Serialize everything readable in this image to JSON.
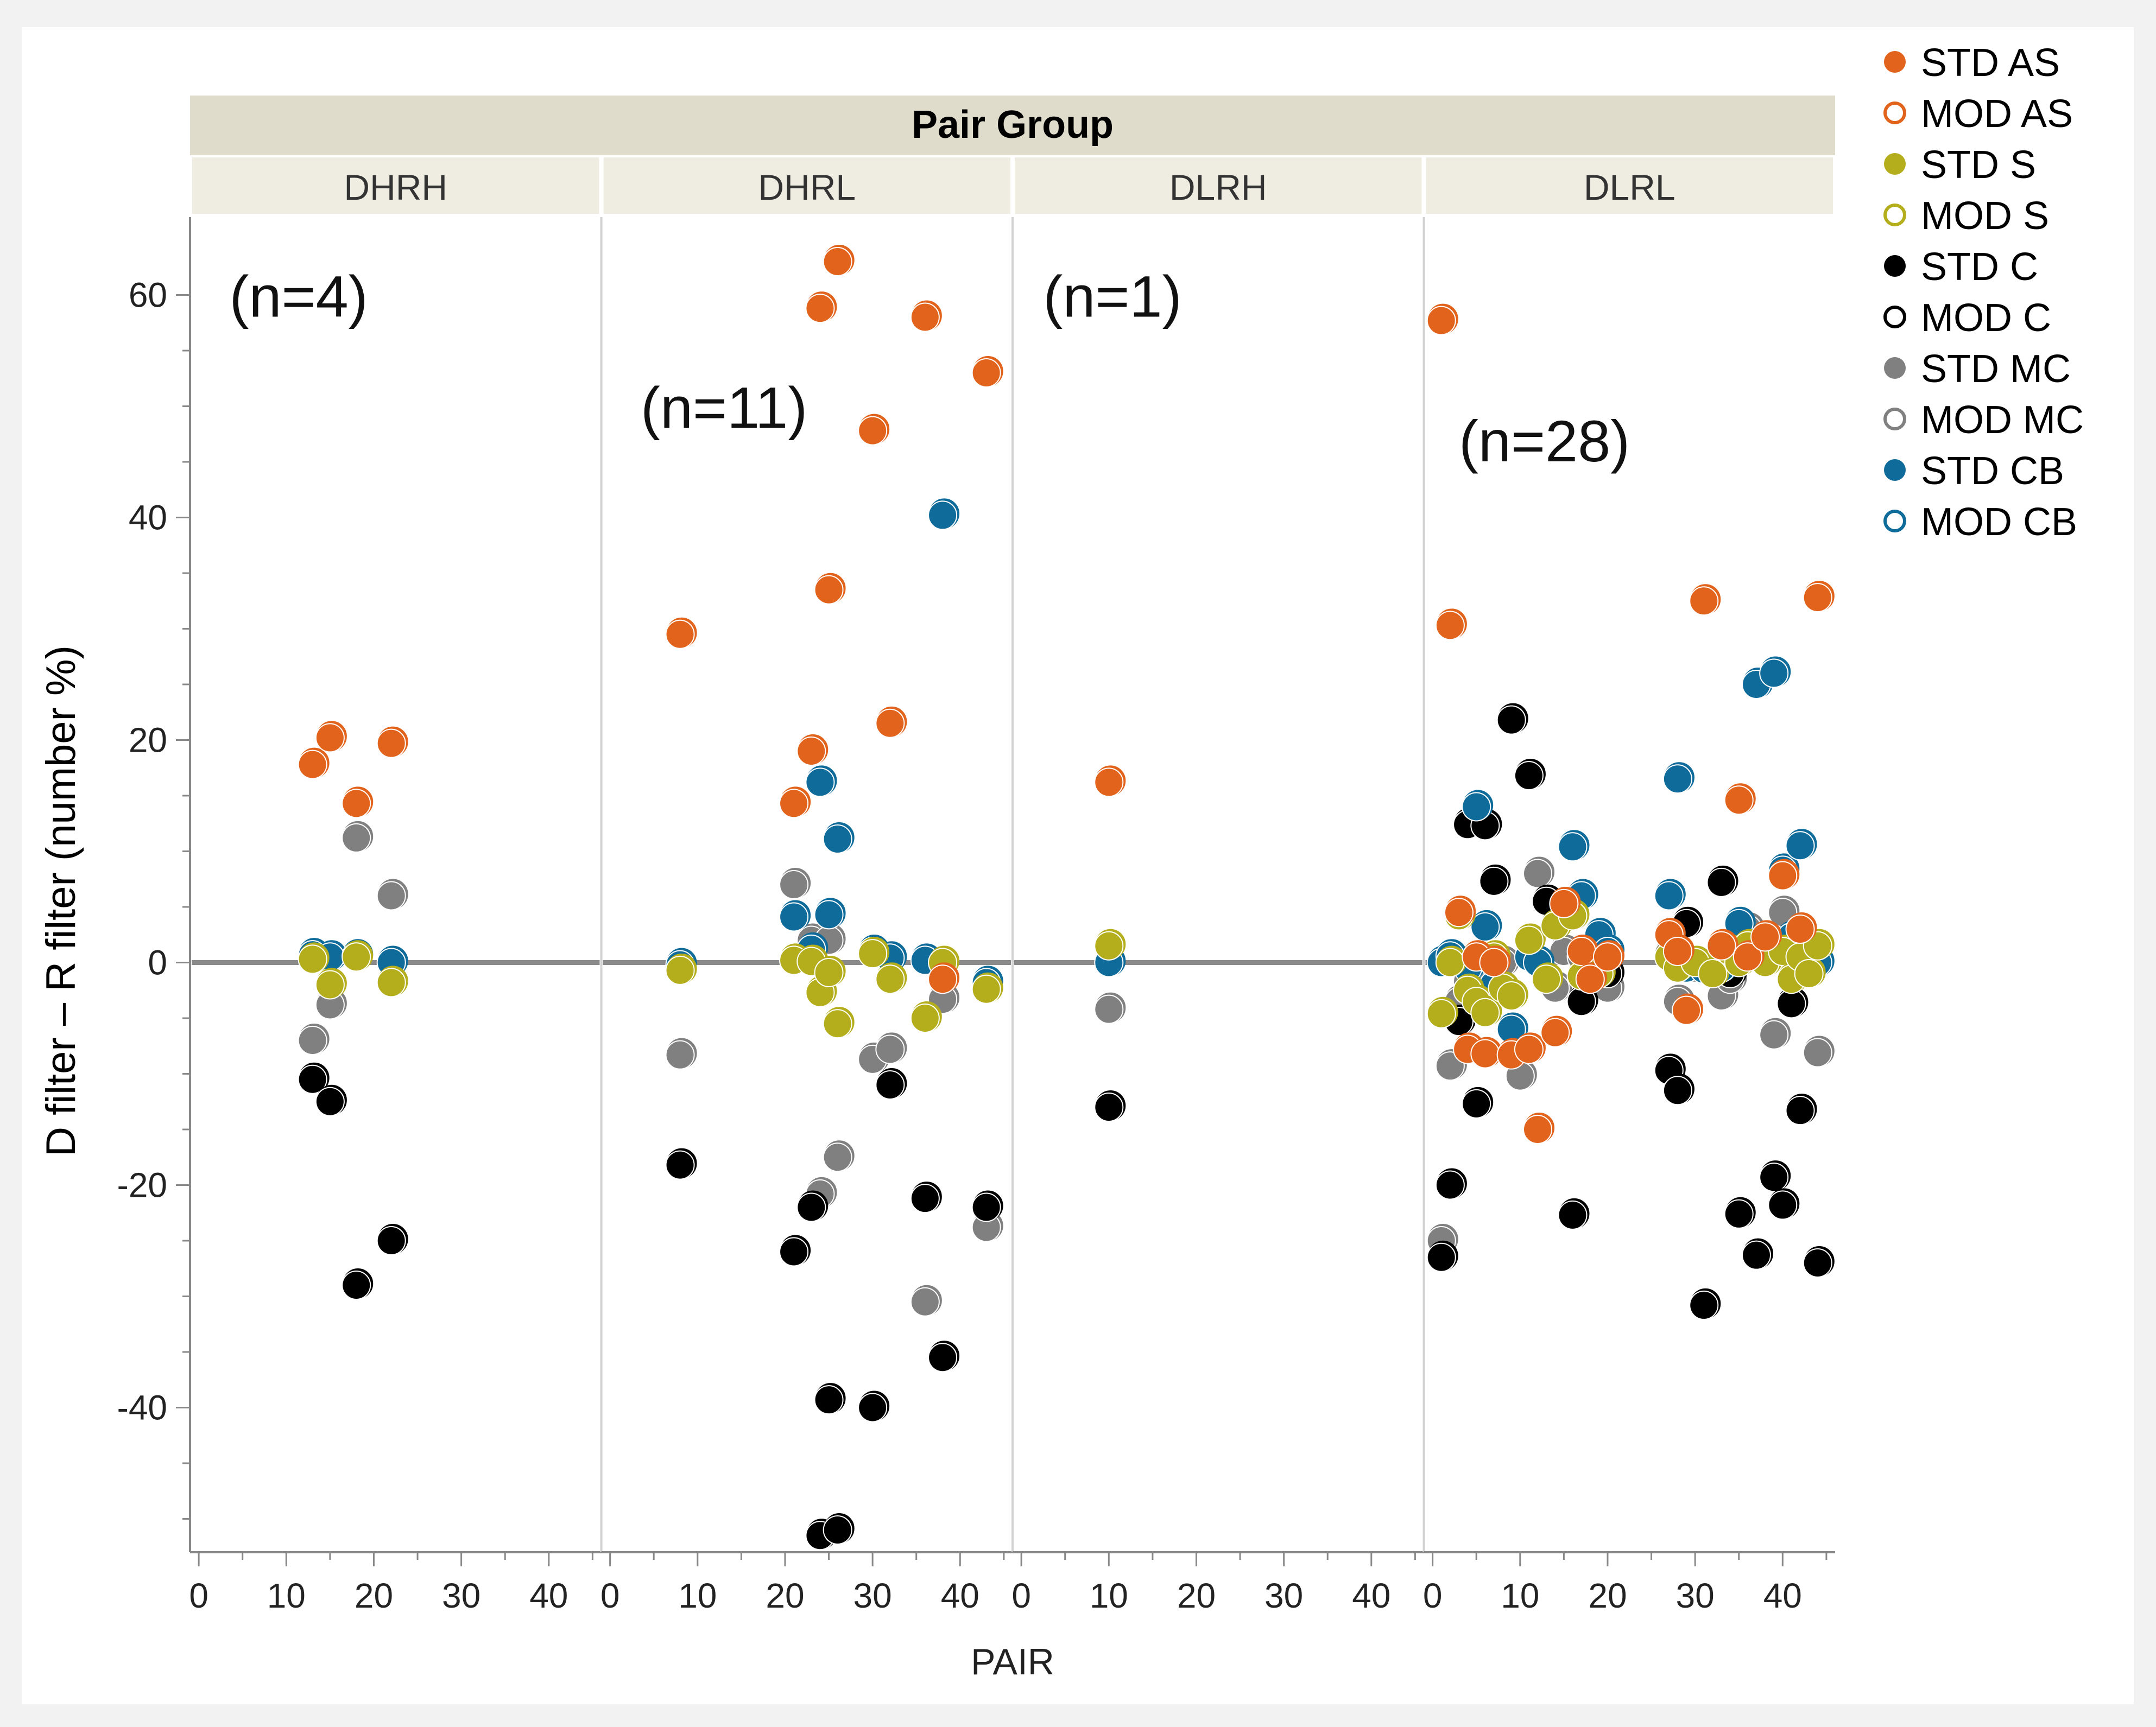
{
  "chart_data": {
    "type": "scatter",
    "title": "",
    "group_header": "Pair Group",
    "xlabel": "PAIR",
    "ylabel": "D filter – R filter (number %)",
    "xlim": [
      -1,
      46
    ],
    "ylim": [
      -53,
      67
    ],
    "x_ticks": [
      0,
      10,
      20,
      30,
      40
    ],
    "y_ticks": [
      -40,
      -20,
      0,
      20,
      40,
      60
    ],
    "reference_line_y": 0,
    "legend_position": "right",
    "legend": [
      {
        "name": "STD AS",
        "color": "#E1631C",
        "filled": true
      },
      {
        "name": "MOD AS",
        "color": "#E1631C",
        "filled": false
      },
      {
        "name": "STD S",
        "color": "#B4AE1D",
        "filled": true
      },
      {
        "name": "MOD S",
        "color": "#B4AE1D",
        "filled": false
      },
      {
        "name": "STD C",
        "color": "#000000",
        "filled": true
      },
      {
        "name": "MOD C",
        "color": "#000000",
        "filled": false
      },
      {
        "name": "STD MC",
        "color": "#808080",
        "filled": true
      },
      {
        "name": "MOD MC",
        "color": "#808080",
        "filled": false
      },
      {
        "name": "STD CB",
        "color": "#0F6B9A",
        "filled": true
      },
      {
        "name": "MOD CB",
        "color": "#0F6B9A",
        "filled": false
      }
    ],
    "panels": [
      {
        "name": "DHRH",
        "annotation": "(n=4)",
        "annotation_at": [
          3.5,
          60
        ],
        "points": {
          "AS": [
            [
              13,
              17.8
            ],
            [
              15,
              20.2
            ],
            [
              18,
              14.3
            ],
            [
              22,
              19.7
            ]
          ],
          "S": [
            [
              13,
              0.3
            ],
            [
              15,
              -2.0
            ],
            [
              18,
              0.5
            ],
            [
              22,
              -1.8
            ]
          ],
          "C": [
            [
              13,
              -10.5
            ],
            [
              15,
              -12.5
            ],
            [
              18,
              -29.0
            ],
            [
              22,
              -25.0
            ]
          ],
          "MC": [
            [
              13,
              -7.0
            ],
            [
              15,
              -3.8
            ],
            [
              18,
              11.2
            ],
            [
              22,
              6.0
            ]
          ],
          "CB": [
            [
              13,
              0.7
            ],
            [
              15,
              0.5
            ],
            [
              18,
              0.6
            ],
            [
              22,
              0.0
            ]
          ]
        }
      },
      {
        "name": "DHRL",
        "annotation": "(n=11)",
        "annotation_at": [
          3.5,
          50
        ],
        "points": {
          "AS": [
            [
              8,
              29.5
            ],
            [
              21,
              14.3
            ],
            [
              23,
              19.0
            ],
            [
              24,
              58.8
            ],
            [
              25,
              33.5
            ],
            [
              26,
              63.0
            ],
            [
              30,
              47.8
            ],
            [
              32,
              21.5
            ],
            [
              36,
              58.0
            ],
            [
              38,
              -1.5
            ],
            [
              43,
              53.0
            ]
          ],
          "S": [
            [
              8,
              -0.7
            ],
            [
              21,
              0.2
            ],
            [
              23,
              0.1
            ],
            [
              24,
              -2.7
            ],
            [
              25,
              -0.9
            ],
            [
              26,
              -5.5
            ],
            [
              30,
              0.8
            ],
            [
              32,
              -1.5
            ],
            [
              36,
              -5.0
            ],
            [
              38,
              0.0
            ],
            [
              43,
              -2.4
            ]
          ],
          "C": [
            [
              8,
              -18.2
            ],
            [
              21,
              -26.0
            ],
            [
              23,
              -22.0
            ],
            [
              24,
              -51.5
            ],
            [
              25,
              -39.3
            ],
            [
              26,
              -51.0
            ],
            [
              30,
              -40.0
            ],
            [
              32,
              -11.0
            ],
            [
              36,
              -21.2
            ],
            [
              38,
              -35.5
            ],
            [
              43,
              -22.0
            ]
          ],
          "MC": [
            [
              8,
              -8.3
            ],
            [
              21,
              7.0
            ],
            [
              23,
              2.0
            ],
            [
              24,
              -20.8
            ],
            [
              25,
              2.0
            ],
            [
              26,
              -17.5
            ],
            [
              30,
              -8.7
            ],
            [
              32,
              -7.8
            ],
            [
              36,
              -30.5
            ],
            [
              38,
              -3.3
            ],
            [
              43,
              -23.8
            ]
          ],
          "CB": [
            [
              8,
              -0.2
            ],
            [
              21,
              4.1
            ],
            [
              23,
              1.2
            ],
            [
              24,
              16.2
            ],
            [
              25,
              4.3
            ],
            [
              26,
              11.1
            ],
            [
              30,
              1.0
            ],
            [
              32,
              0.4
            ],
            [
              36,
              0.2
            ],
            [
              38,
              40.2
            ],
            [
              43,
              -1.8
            ]
          ]
        }
      },
      {
        "name": "DLRH",
        "annotation": "(n=1)",
        "annotation_at": [
          2.5,
          60
        ],
        "points": {
          "AS": [
            [
              10,
              16.2
            ]
          ],
          "S": [
            [
              10,
              1.5
            ]
          ],
          "C": [
            [
              10,
              -13.0
            ]
          ],
          "MC": [
            [
              10,
              -4.2
            ]
          ],
          "CB": [
            [
              10,
              0.0
            ]
          ]
        }
      },
      {
        "name": "DLRL",
        "annotation": "(n=28)",
        "annotation_at": [
          3,
          47
        ],
        "points": {
          "AS": [
            [
              1,
              57.7
            ],
            [
              2,
              30.3
            ],
            [
              3,
              4.5
            ],
            [
              4,
              -7.8
            ],
            [
              5,
              0.5
            ],
            [
              6,
              -8.2
            ],
            [
              7,
              0.0
            ],
            [
              9,
              -8.3
            ],
            [
              11,
              -7.8
            ],
            [
              12,
              -15.0
            ],
            [
              14,
              -6.3
            ],
            [
              15,
              5.3
            ],
            [
              17,
              1.0
            ],
            [
              18,
              -1.5
            ],
            [
              20,
              0.5
            ],
            [
              27,
              2.5
            ],
            [
              28,
              1.0
            ],
            [
              29,
              -4.3
            ],
            [
              31,
              32.5
            ],
            [
              33,
              1.5
            ],
            [
              35,
              14.6
            ],
            [
              36,
              0.5
            ],
            [
              38,
              2.3
            ],
            [
              40,
              7.8
            ],
            [
              42,
              3.0
            ],
            [
              44,
              32.8
            ]
          ],
          "S": [
            [
              1,
              -4.6
            ],
            [
              2,
              0.0
            ],
            [
              3,
              4.2
            ],
            [
              4,
              -2.5
            ],
            [
              5,
              -3.5
            ],
            [
              6,
              -4.5
            ],
            [
              7,
              0.5
            ],
            [
              8,
              -2.3
            ],
            [
              9,
              -3.0
            ],
            [
              11,
              2.0
            ],
            [
              13,
              -1.5
            ],
            [
              14,
              3.3
            ],
            [
              16,
              4.2
            ],
            [
              17,
              -1.2
            ],
            [
              19,
              -1.0
            ],
            [
              27,
              0.5
            ],
            [
              28,
              -0.5
            ],
            [
              30,
              0.0
            ],
            [
              32,
              -1.0
            ],
            [
              34,
              1.0
            ],
            [
              35,
              0.0
            ],
            [
              36,
              1.5
            ],
            [
              38,
              0.0
            ],
            [
              40,
              1.0
            ],
            [
              41,
              -1.5
            ],
            [
              42,
              0.5
            ],
            [
              43,
              -1.0
            ],
            [
              44,
              1.5
            ]
          ],
          "C": [
            [
              1,
              -26.5
            ],
            [
              2,
              -20.0
            ],
            [
              3,
              -5.3
            ],
            [
              4,
              12.4
            ],
            [
              5,
              -12.7
            ],
            [
              6,
              12.3
            ],
            [
              7,
              7.3
            ],
            [
              9,
              21.8
            ],
            [
              11,
              16.8
            ],
            [
              13,
              5.5
            ],
            [
              16,
              -22.7
            ],
            [
              17,
              -3.5
            ],
            [
              19,
              0.0
            ],
            [
              20,
              -1.0
            ],
            [
              27,
              -9.7
            ],
            [
              28,
              -11.5
            ],
            [
              29,
              3.5
            ],
            [
              31,
              -30.8
            ],
            [
              33,
              7.2
            ],
            [
              34,
              -1.0
            ],
            [
              35,
              -22.6
            ],
            [
              37,
              -26.3
            ],
            [
              39,
              -19.3
            ],
            [
              40,
              -21.8
            ],
            [
              41,
              -3.7
            ],
            [
              42,
              -13.3
            ],
            [
              44,
              -27.0
            ]
          ],
          "MC": [
            [
              1,
              -25.0
            ],
            [
              2,
              -9.3
            ],
            [
              3,
              -3.5
            ],
            [
              4,
              -1.7
            ],
            [
              6,
              -2.7
            ],
            [
              8,
              0.0
            ],
            [
              10,
              -10.2
            ],
            [
              12,
              8.0
            ],
            [
              14,
              -2.3
            ],
            [
              15,
              1.0
            ],
            [
              17,
              0.5
            ],
            [
              18,
              -1.7
            ],
            [
              19,
              -0.8
            ],
            [
              20,
              -2.3
            ],
            [
              27,
              0.8
            ],
            [
              28,
              -3.5
            ],
            [
              30,
              -0.5
            ],
            [
              33,
              -3.0
            ],
            [
              34,
              -1.5
            ],
            [
              36,
              3.0
            ],
            [
              38,
              2.0
            ],
            [
              39,
              -6.5
            ],
            [
              40,
              4.5
            ],
            [
              42,
              1.8
            ],
            [
              44,
              -8.1
            ]
          ],
          "CB": [
            [
              1,
              0.0
            ],
            [
              2,
              0.6
            ],
            [
              3,
              4.2
            ],
            [
              4,
              -0.5
            ],
            [
              5,
              14.0
            ],
            [
              6,
              3.2
            ],
            [
              7,
              -2.0
            ],
            [
              9,
              -6.0
            ],
            [
              11,
              0.5
            ],
            [
              12,
              0.0
            ],
            [
              14,
              3.3
            ],
            [
              16,
              10.4
            ],
            [
              17,
              6.0
            ],
            [
              19,
              2.5
            ],
            [
              20,
              1.0
            ],
            [
              27,
              6.0
            ],
            [
              28,
              16.5
            ],
            [
              29,
              -0.5
            ],
            [
              31,
              -0.6
            ],
            [
              33,
              -0.5
            ],
            [
              34,
              1.5
            ],
            [
              35,
              3.5
            ],
            [
              37,
              25.0
            ],
            [
              39,
              26.0
            ],
            [
              40,
              8.3
            ],
            [
              41,
              2.3
            ],
            [
              42,
              10.5
            ],
            [
              44,
              0.0
            ]
          ]
        }
      }
    ]
  }
}
